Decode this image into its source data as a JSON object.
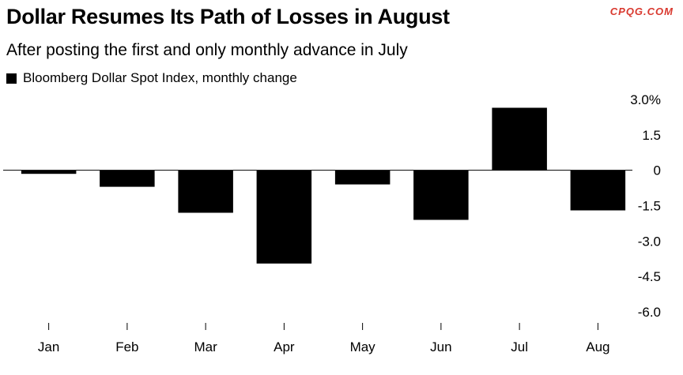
{
  "title": "Dollar Resumes Its Path of Losses in August",
  "subtitle": "After posting the first and only monthly advance in July",
  "watermark": "CPQG.COM",
  "legend": {
    "label": "Bloomberg Dollar Spot Index, monthly change"
  },
  "colors": {
    "bar": "#000000",
    "background": "#ffffff",
    "watermark": "#d9392f"
  },
  "chart_data": {
    "type": "bar",
    "categories": [
      "Jan",
      "Feb",
      "Mar",
      "Apr",
      "May",
      "Jun",
      "Jul",
      "Aug"
    ],
    "series": [
      {
        "name": "Bloomberg Dollar Spot Index, monthly change",
        "values": [
          -0.15,
          -0.7,
          -1.8,
          -3.95,
          -0.6,
          -2.1,
          2.65,
          -1.7
        ]
      }
    ],
    "ylim": [
      -6.0,
      3.0
    ],
    "yticks": [
      3.0,
      1.5,
      0,
      -1.5,
      -3.0,
      -4.5,
      -6.0
    ],
    "ytick_labels": [
      "3.0%",
      "1.5",
      "0",
      "-1.5",
      "-3.0",
      "-4.5",
      "-6.0"
    ],
    "y_axis_position": "right",
    "grid": false,
    "legend_position": "top-left"
  }
}
